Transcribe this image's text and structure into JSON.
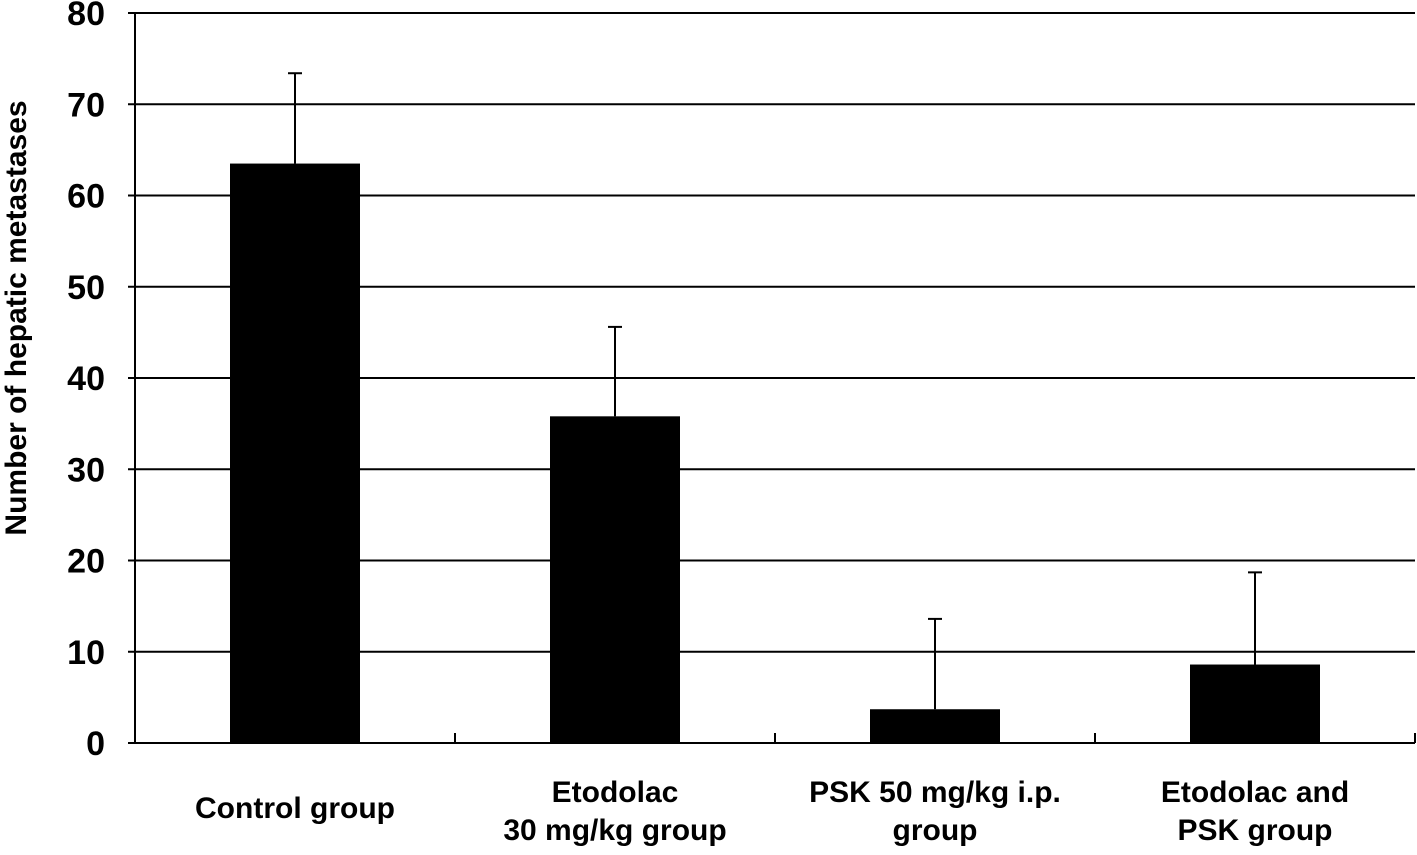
{
  "chart_data": {
    "type": "bar",
    "title": "",
    "xlabel": "",
    "ylabel": "Number of hepatic metastases",
    "ylim": [
      0,
      80
    ],
    "yticks": [
      0,
      10,
      20,
      30,
      40,
      50,
      60,
      70,
      80
    ],
    "grid": true,
    "categories": [
      [
        "Control group"
      ],
      [
        "Etodolac",
        "30 mg/kg group"
      ],
      [
        "PSK 50 mg/kg i.p.",
        "group"
      ],
      [
        "Etodolac and",
        "PSK group"
      ]
    ],
    "values": [
      63.5,
      35.8,
      3.7,
      8.6
    ],
    "errors": [
      9.9,
      9.8,
      9.9,
      10.1
    ],
    "colors": {
      "bar": "#000000",
      "grid": "#000000",
      "background": "#ffffff"
    }
  }
}
